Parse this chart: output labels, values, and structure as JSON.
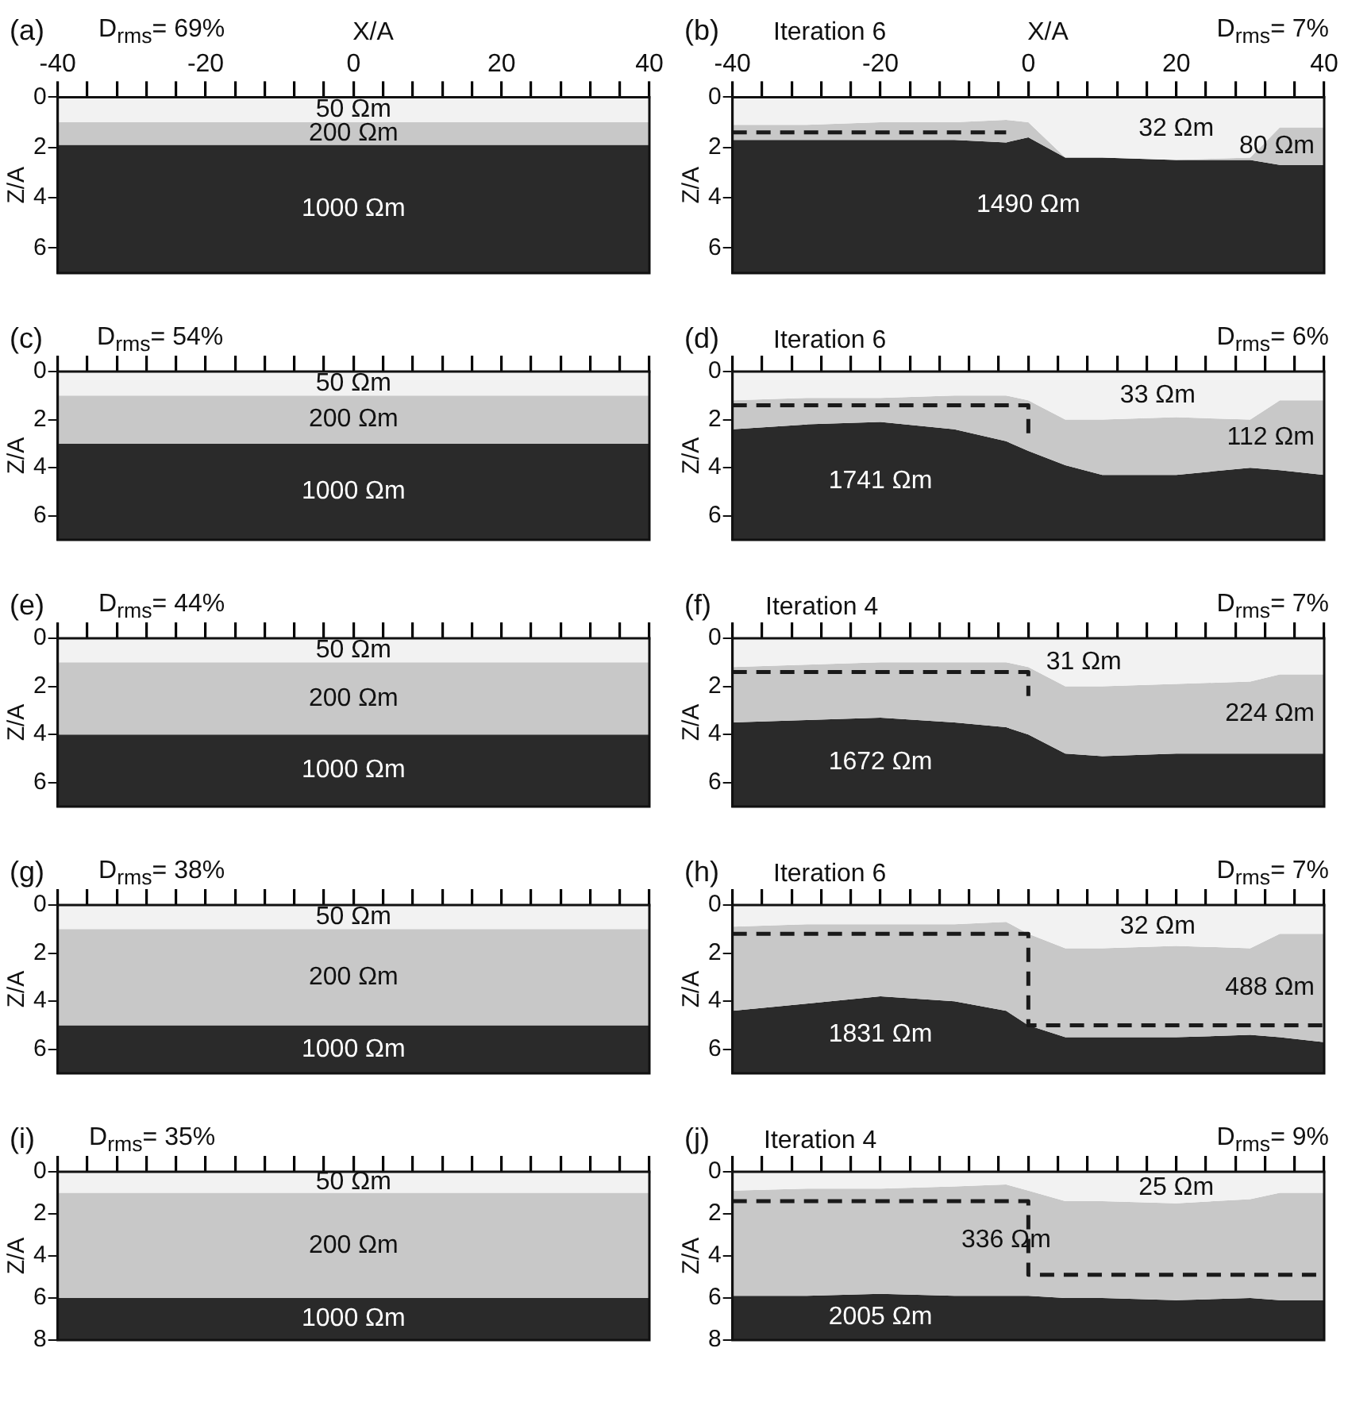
{
  "chart_data": [
    {
      "type": "area",
      "title": "(a)",
      "annotations": [
        "D$_{rms}$= 69%"
      ],
      "xlabel": "X/A",
      "ylabel": "Z/A",
      "stacked": true,
      "x": [
        -40,
        40
      ],
      "xlim": [
        -40,
        40
      ],
      "xticks": [
        -40,
        {
          "value": -36,
          "label": null
        },
        {
          "value": -32,
          "label": null
        },
        {
          "value": -28,
          "label": null
        },
        {
          "value": -24,
          "label": null
        },
        -20,
        {
          "value": -16,
          "label": null
        },
        {
          "value": -12,
          "label": null
        },
        {
          "value": -8,
          "label": null
        },
        {
          "value": -4,
          "label": null
        },
        0,
        {
          "value": 4,
          "label": null
        },
        {
          "value": 8,
          "label": null
        },
        {
          "value": 12,
          "label": null
        },
        {
          "value": 16,
          "label": null
        },
        20,
        {
          "value": 24,
          "label": null
        },
        {
          "value": 28,
          "label": null
        },
        {
          "value": 32,
          "label": null
        },
        {
          "value": 36,
          "label": null
        },
        40
      ],
      "ylim": [
        7,
        0
      ],
      "yticks": [
        0,
        2,
        4,
        6
      ],
      "grid": false,
      "legend": false,
      "series": [
        {
          "name": "50 Ωm",
          "color": "#f2f2f2",
          "values": [
            1,
            1
          ]
        },
        {
          "name": "200 Ωm",
          "color": "#c8c8c8",
          "values": [
            0.9,
            0.9
          ]
        },
        {
          "name": "1000 Ωm",
          "color": "#2a2a2a",
          "values": [
            5.1,
            5.1
          ]
        }
      ]
    },
    {
      "type": "area",
      "title": "(b)",
      "annotations": [
        "Iteration 6",
        "D$_{rms}$= 7%"
      ],
      "xlabel": "X/A",
      "ylabel": "Z/A",
      "stacked": true,
      "x": [
        -40,
        -30,
        -20,
        -10,
        -3,
        0,
        5,
        10,
        20,
        30,
        34,
        40
      ],
      "xlim": [
        -40,
        40
      ],
      "xticks": [
        -40,
        {
          "value": -36,
          "label": null
        },
        {
          "value": -32,
          "label": null
        },
        {
          "value": -28,
          "label": null
        },
        {
          "value": -24,
          "label": null
        },
        -20,
        {
          "value": -16,
          "label": null
        },
        {
          "value": -12,
          "label": null
        },
        {
          "value": -8,
          "label": null
        },
        {
          "value": -4,
          "label": null
        },
        0,
        {
          "value": 4,
          "label": null
        },
        {
          "value": 8,
          "label": null
        },
        {
          "value": 12,
          "label": null
        },
        {
          "value": 16,
          "label": null
        },
        20,
        {
          "value": 24,
          "label": null
        },
        {
          "value": 28,
          "label": null
        },
        {
          "value": 32,
          "label": null
        },
        {
          "value": 36,
          "label": null
        },
        40
      ],
      "ylim": [
        7,
        0
      ],
      "yticks": [
        0,
        2,
        4,
        6
      ],
      "grid": false,
      "legend": false,
      "series": [
        {
          "name": "32 Ωm",
          "color": "#f2f2f2",
          "values": [
            1.1,
            1.1,
            1.0,
            1.0,
            0.9,
            1.0,
            2.4,
            2.4,
            2.5,
            2.4,
            1.2,
            1.2
          ]
        },
        {
          "name": "80 Ωm",
          "color": "#c8c8c8",
          "values": [
            0.6,
            0.6,
            0.7,
            0.7,
            0.9,
            0.6,
            0,
            0,
            0,
            0.1,
            1.5,
            1.5
          ]
        },
        {
          "name": "1490 Ωm",
          "color": "#2a2a2a",
          "values": [
            5.3,
            5.3,
            5.3,
            5.3,
            5.2,
            5.4,
            4.6,
            4.6,
            4.5,
            4.5,
            4.3,
            4.3
          ]
        },
        {
          "type": "line",
          "color": "#1a1a1a",
          "line_style": "dashed",
          "x": [
            -40,
            -3
          ],
          "values": [
            1.4,
            1.4
          ]
        }
      ]
    },
    {
      "type": "area",
      "title": "(c)",
      "annotations": [
        "D$_{rms}$= 54%"
      ],
      "ylabel": "Z/A",
      "stacked": true,
      "tick_labels": "y",
      "x": [
        -40,
        40
      ],
      "xlim": [
        -40,
        40
      ],
      "xticks": [
        -40,
        {
          "value": -36,
          "label": null
        },
        {
          "value": -32,
          "label": null
        },
        {
          "value": -28,
          "label": null
        },
        {
          "value": -24,
          "label": null
        },
        -20,
        {
          "value": -16,
          "label": null
        },
        {
          "value": -12,
          "label": null
        },
        {
          "value": -8,
          "label": null
        },
        {
          "value": -4,
          "label": null
        },
        0,
        {
          "value": 4,
          "label": null
        },
        {
          "value": 8,
          "label": null
        },
        {
          "value": 12,
          "label": null
        },
        {
          "value": 16,
          "label": null
        },
        20,
        {
          "value": 24,
          "label": null
        },
        {
          "value": 28,
          "label": null
        },
        {
          "value": 32,
          "label": null
        },
        {
          "value": 36,
          "label": null
        },
        40
      ],
      "ylim": [
        7,
        0
      ],
      "yticks": [
        0,
        2,
        4,
        6
      ],
      "grid": false,
      "legend": false,
      "series": [
        {
          "name": "50 Ωm",
          "color": "#f2f2f2",
          "values": [
            1,
            1
          ]
        },
        {
          "name": "200 Ωm",
          "color": "#c8c8c8",
          "values": [
            2,
            2
          ]
        },
        {
          "name": "1000 Ωm",
          "color": "#2a2a2a",
          "values": [
            4,
            4
          ]
        }
      ]
    },
    {
      "type": "area",
      "title": "(d)",
      "annotations": [
        "Iteration 6",
        "D$_{rms}$= 6%"
      ],
      "ylabel": "Z/A",
      "stacked": true,
      "tick_labels": "y",
      "x": [
        -40,
        -30,
        -20,
        -10,
        -3,
        0,
        5,
        10,
        20,
        30,
        34,
        40
      ],
      "xlim": [
        -40,
        40
      ],
      "xticks": [
        -40,
        {
          "value": -36,
          "label": null
        },
        {
          "value": -32,
          "label": null
        },
        {
          "value": -28,
          "label": null
        },
        {
          "value": -24,
          "label": null
        },
        -20,
        {
          "value": -16,
          "label": null
        },
        {
          "value": -12,
          "label": null
        },
        {
          "value": -8,
          "label": null
        },
        {
          "value": -4,
          "label": null
        },
        0,
        {
          "value": 4,
          "label": null
        },
        {
          "value": 8,
          "label": null
        },
        {
          "value": 12,
          "label": null
        },
        {
          "value": 16,
          "label": null
        },
        20,
        {
          "value": 24,
          "label": null
        },
        {
          "value": 28,
          "label": null
        },
        {
          "value": 32,
          "label": null
        },
        {
          "value": 36,
          "label": null
        },
        40
      ],
      "ylim": [
        7,
        0
      ],
      "yticks": [
        0,
        2,
        4,
        6
      ],
      "grid": false,
      "legend": false,
      "series": [
        {
          "name": "33 Ωm",
          "color": "#f2f2f2",
          "values": [
            1.2,
            1.1,
            1.1,
            1.0,
            1.0,
            1.2,
            2.0,
            2.0,
            1.9,
            2.0,
            1.2,
            1.2
          ]
        },
        {
          "name": "112 Ωm",
          "color": "#c8c8c8",
          "values": [
            1.2,
            1.1,
            1.0,
            1.4,
            1.9,
            2.1,
            1.9,
            2.3,
            2.4,
            2.0,
            2.9,
            3.1
          ]
        },
        {
          "name": "1741 Ωm",
          "color": "#2a2a2a",
          "values": [
            4.6,
            4.8,
            4.9,
            4.6,
            4.1,
            3.7,
            3.1,
            2.7,
            2.7,
            3.0,
            2.9,
            2.7
          ]
        },
        {
          "type": "line",
          "color": "#1a1a1a",
          "line_style": "dashed",
          "x": [
            -40,
            0,
            0
          ],
          "values": [
            1.4,
            1.4,
            2.6
          ]
        }
      ]
    },
    {
      "type": "area",
      "title": "(e)",
      "annotations": [
        "D$_{rms}$= 44%"
      ],
      "ylabel": "Z/A",
      "stacked": true,
      "tick_labels": "y",
      "x": [
        -40,
        40
      ],
      "xlim": [
        -40,
        40
      ],
      "xticks": [
        -40,
        {
          "value": -36,
          "label": null
        },
        {
          "value": -32,
          "label": null
        },
        {
          "value": -28,
          "label": null
        },
        {
          "value": -24,
          "label": null
        },
        -20,
        {
          "value": -16,
          "label": null
        },
        {
          "value": -12,
          "label": null
        },
        {
          "value": -8,
          "label": null
        },
        {
          "value": -4,
          "label": null
        },
        0,
        {
          "value": 4,
          "label": null
        },
        {
          "value": 8,
          "label": null
        },
        {
          "value": 12,
          "label": null
        },
        {
          "value": 16,
          "label": null
        },
        20,
        {
          "value": 24,
          "label": null
        },
        {
          "value": 28,
          "label": null
        },
        {
          "value": 32,
          "label": null
        },
        {
          "value": 36,
          "label": null
        },
        40
      ],
      "ylim": [
        7,
        0
      ],
      "yticks": [
        0,
        2,
        4,
        6
      ],
      "grid": false,
      "legend": false,
      "series": [
        {
          "name": "50 Ωm",
          "color": "#f2f2f2",
          "values": [
            1,
            1
          ]
        },
        {
          "name": "200 Ωm",
          "color": "#c8c8c8",
          "values": [
            3,
            3
          ]
        },
        {
          "name": "1000 Ωm",
          "color": "#2a2a2a",
          "values": [
            3,
            3
          ]
        }
      ]
    },
    {
      "type": "area",
      "title": "(f)",
      "annotations": [
        "Iteration 4",
        "D$_{rms}$= 7%"
      ],
      "ylabel": "Z/A",
      "stacked": true,
      "tick_labels": "y",
      "x": [
        -40,
        -30,
        -20,
        -10,
        -3,
        0,
        5,
        10,
        20,
        30,
        34,
        40
      ],
      "xlim": [
        -40,
        40
      ],
      "xticks": [
        -40,
        {
          "value": -36,
          "label": null
        },
        {
          "value": -32,
          "label": null
        },
        {
          "value": -28,
          "label": null
        },
        {
          "value": -24,
          "label": null
        },
        -20,
        {
          "value": -16,
          "label": null
        },
        {
          "value": -12,
          "label": null
        },
        {
          "value": -8,
          "label": null
        },
        {
          "value": -4,
          "label": null
        },
        0,
        {
          "value": 4,
          "label": null
        },
        {
          "value": 8,
          "label": null
        },
        {
          "value": 12,
          "label": null
        },
        {
          "value": 16,
          "label": null
        },
        20,
        {
          "value": 24,
          "label": null
        },
        {
          "value": 28,
          "label": null
        },
        {
          "value": 32,
          "label": null
        },
        {
          "value": 36,
          "label": null
        },
        40
      ],
      "ylim": [
        7,
        0
      ],
      "yticks": [
        0,
        2,
        4,
        6
      ],
      "grid": false,
      "legend": false,
      "series": [
        {
          "name": "31 Ωm",
          "color": "#f2f2f2",
          "values": [
            1.2,
            1.1,
            1.0,
            1.0,
            1.0,
            1.2,
            2.0,
            2.0,
            1.9,
            1.8,
            1.5,
            1.5
          ]
        },
        {
          "name": "224 Ωm",
          "color": "#c8c8c8",
          "values": [
            2.3,
            2.3,
            2.3,
            2.5,
            2.7,
            2.8,
            2.8,
            2.9,
            2.9,
            3.0,
            3.3,
            3.3
          ]
        },
        {
          "name": "1672 Ωm",
          "color": "#2a2a2a",
          "values": [
            3.5,
            3.6,
            3.7,
            3.5,
            3.3,
            3.0,
            2.2,
            2.1,
            2.2,
            2.2,
            2.2,
            2.2
          ]
        },
        {
          "type": "line",
          "color": "#1a1a1a",
          "line_style": "dashed",
          "x": [
            -40,
            0,
            0
          ],
          "values": [
            1.4,
            1.4,
            2.4
          ]
        }
      ]
    },
    {
      "type": "area",
      "title": "(g)",
      "annotations": [
        "D$_{rms}$= 38%"
      ],
      "ylabel": "Z/A",
      "stacked": true,
      "tick_labels": "y",
      "x": [
        -40,
        40
      ],
      "xlim": [
        -40,
        40
      ],
      "xticks": [
        -40,
        {
          "value": -36,
          "label": null
        },
        {
          "value": -32,
          "label": null
        },
        {
          "value": -28,
          "label": null
        },
        {
          "value": -24,
          "label": null
        },
        -20,
        {
          "value": -16,
          "label": null
        },
        {
          "value": -12,
          "label": null
        },
        {
          "value": -8,
          "label": null
        },
        {
          "value": -4,
          "label": null
        },
        0,
        {
          "value": 4,
          "label": null
        },
        {
          "value": 8,
          "label": null
        },
        {
          "value": 12,
          "label": null
        },
        {
          "value": 16,
          "label": null
        },
        20,
        {
          "value": 24,
          "label": null
        },
        {
          "value": 28,
          "label": null
        },
        {
          "value": 32,
          "label": null
        },
        {
          "value": 36,
          "label": null
        },
        40
      ],
      "ylim": [
        7,
        0
      ],
      "yticks": [
        0,
        2,
        4,
        6
      ],
      "grid": false,
      "legend": false,
      "series": [
        {
          "name": "50 Ωm",
          "color": "#f2f2f2",
          "values": [
            1,
            1
          ]
        },
        {
          "name": "200 Ωm",
          "color": "#c8c8c8",
          "values": [
            4,
            4
          ]
        },
        {
          "name": "1000 Ωm",
          "color": "#2a2a2a",
          "values": [
            2,
            2
          ]
        }
      ]
    },
    {
      "type": "area",
      "title": "(h)",
      "annotations": [
        "Iteration 6",
        "D$_{rms}$= 7%"
      ],
      "ylabel": "Z/A",
      "stacked": true,
      "tick_labels": "y",
      "x": [
        -40,
        -30,
        -20,
        -10,
        -3,
        0,
        5,
        10,
        20,
        30,
        34,
        40
      ],
      "xlim": [
        -40,
        40
      ],
      "xticks": [
        -40,
        {
          "value": -36,
          "label": null
        },
        {
          "value": -32,
          "label": null
        },
        {
          "value": -28,
          "label": null
        },
        {
          "value": -24,
          "label": null
        },
        -20,
        {
          "value": -16,
          "label": null
        },
        {
          "value": -12,
          "label": null
        },
        {
          "value": -8,
          "label": null
        },
        {
          "value": -4,
          "label": null
        },
        0,
        {
          "value": 4,
          "label": null
        },
        {
          "value": 8,
          "label": null
        },
        {
          "value": 12,
          "label": null
        },
        {
          "value": 16,
          "label": null
        },
        20,
        {
          "value": 24,
          "label": null
        },
        {
          "value": 28,
          "label": null
        },
        {
          "value": 32,
          "label": null
        },
        {
          "value": 36,
          "label": null
        },
        40
      ],
      "ylim": [
        7,
        0
      ],
      "yticks": [
        0,
        2,
        4,
        6
      ],
      "grid": false,
      "legend": false,
      "series": [
        {
          "name": "32 Ωm",
          "color": "#f2f2f2",
          "values": [
            0.9,
            0.8,
            0.8,
            0.8,
            0.7,
            1.2,
            1.8,
            1.8,
            1.7,
            1.8,
            1.2,
            1.2
          ]
        },
        {
          "name": "488 Ωm",
          "color": "#c8c8c8",
          "values": [
            3.5,
            3.3,
            3.0,
            3.2,
            3.7,
            3.8,
            3.7,
            3.7,
            3.8,
            3.6,
            4.3,
            4.5
          ]
        },
        {
          "name": "1831 Ωm",
          "color": "#2a2a2a",
          "values": [
            2.6,
            2.9,
            3.2,
            3.0,
            2.6,
            2.0,
            1.5,
            1.5,
            1.5,
            1.6,
            1.5,
            1.3
          ]
        },
        {
          "type": "line",
          "color": "#1a1a1a",
          "line_style": "dashed",
          "x": [
            -40,
            0,
            0,
            40
          ],
          "values": [
            1.2,
            1.2,
            5.0,
            5.0
          ]
        }
      ]
    },
    {
      "type": "area",
      "title": "(i)",
      "annotations": [
        "D$_{rms}$= 35%"
      ],
      "ylabel": "Z/A",
      "stacked": true,
      "tick_labels": "y",
      "x": [
        -40,
        40
      ],
      "xlim": [
        -40,
        40
      ],
      "xticks": [
        -40,
        {
          "value": -36,
          "label": null
        },
        {
          "value": -32,
          "label": null
        },
        {
          "value": -28,
          "label": null
        },
        {
          "value": -24,
          "label": null
        },
        -20,
        {
          "value": -16,
          "label": null
        },
        {
          "value": -12,
          "label": null
        },
        {
          "value": -8,
          "label": null
        },
        {
          "value": -4,
          "label": null
        },
        0,
        {
          "value": 4,
          "label": null
        },
        {
          "value": 8,
          "label": null
        },
        {
          "value": 12,
          "label": null
        },
        {
          "value": 16,
          "label": null
        },
        20,
        {
          "value": 24,
          "label": null
        },
        {
          "value": 28,
          "label": null
        },
        {
          "value": 32,
          "label": null
        },
        {
          "value": 36,
          "label": null
        },
        40
      ],
      "ylim": [
        8,
        0
      ],
      "yticks": [
        0,
        2,
        4,
        6,
        8
      ],
      "grid": false,
      "legend": false,
      "series": [
        {
          "name": "50 Ωm",
          "color": "#f2f2f2",
          "values": [
            1,
            1
          ]
        },
        {
          "name": "200 Ωm",
          "color": "#c8c8c8",
          "values": [
            5,
            5
          ]
        },
        {
          "name": "1000 Ωm",
          "color": "#2a2a2a",
          "values": [
            2,
            2
          ]
        }
      ]
    },
    {
      "type": "area",
      "title": "(j)",
      "annotations": [
        "Iteration 4",
        "D$_{rms}$= 9%"
      ],
      "ylabel": "Z/A",
      "stacked": true,
      "tick_labels": "y",
      "x": [
        -40,
        -30,
        -20,
        -10,
        -3,
        0,
        5,
        10,
        20,
        30,
        34,
        40
      ],
      "xlim": [
        -40,
        40
      ],
      "xticks": [
        -40,
        {
          "value": -36,
          "label": null
        },
        {
          "value": -32,
          "label": null
        },
        {
          "value": -28,
          "label": null
        },
        {
          "value": -24,
          "label": null
        },
        -20,
        {
          "value": -16,
          "label": null
        },
        {
          "value": -12,
          "label": null
        },
        {
          "value": -8,
          "label": null
        },
        {
          "value": -4,
          "label": null
        },
        0,
        {
          "value": 4,
          "label": null
        },
        {
          "value": 8,
          "label": null
        },
        {
          "value": 12,
          "label": null
        },
        {
          "value": 16,
          "label": null
        },
        20,
        {
          "value": 24,
          "label": null
        },
        {
          "value": 28,
          "label": null
        },
        {
          "value": 32,
          "label": null
        },
        {
          "value": 36,
          "label": null
        },
        40
      ],
      "ylim": [
        8,
        0
      ],
      "yticks": [
        0,
        2,
        4,
        6,
        8
      ],
      "grid": false,
      "legend": false,
      "series": [
        {
          "name": "25 Ωm",
          "color": "#f2f2f2",
          "values": [
            0.9,
            0.8,
            0.8,
            0.7,
            0.6,
            0.9,
            1.4,
            1.4,
            1.5,
            1.3,
            1.0,
            1.0
          ]
        },
        {
          "name": "336 Ωm",
          "color": "#c8c8c8",
          "values": [
            5.0,
            5.1,
            5.0,
            5.2,
            5.3,
            5.0,
            4.6,
            4.6,
            4.6,
            4.7,
            5.1,
            5.1
          ]
        },
        {
          "name": "2005 Ωm",
          "color": "#2a2a2a",
          "values": [
            2.1,
            2.1,
            2.2,
            2.1,
            2.1,
            2.1,
            2.0,
            2.0,
            1.9,
            2.0,
            1.9,
            1.9
          ]
        },
        {
          "type": "line",
          "color": "#1a1a1a",
          "line_style": "dashed",
          "x": [
            -40,
            0,
            0,
            40
          ],
          "values": [
            1.4,
            1.4,
            4.9,
            4.9
          ]
        }
      ]
    }
  ]
}
